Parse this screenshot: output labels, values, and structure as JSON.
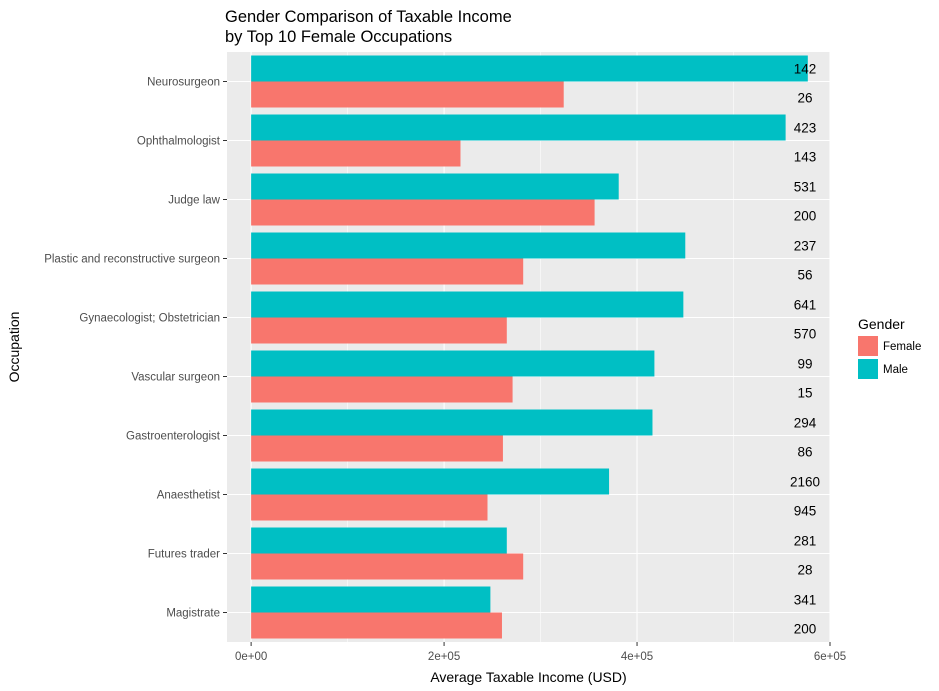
{
  "chart_data": {
    "type": "bar",
    "orientation": "horizontal",
    "title": "Gender Comparison of Taxable Income\n by Top 10 Female Occupations",
    "xlabel": "Average Taxable Income (USD)",
    "ylabel": "Occupation",
    "xlim": [
      -25000,
      600000
    ],
    "x_ticks": [
      0,
      200000,
      400000,
      600000
    ],
    "x_tick_labels": [
      "0e+00",
      "2e+05",
      "4e+05",
      "6e+05"
    ],
    "categories": [
      "Neurosurgeon",
      "Ophthalmologist",
      "Judge  law",
      "Plastic and reconstructive surgeon",
      "Gynaecologist; Obstetrician",
      "Vascular surgeon",
      "Gastroenterologist",
      "Anaesthetist",
      "Futures trader",
      "Magistrate"
    ],
    "series": [
      {
        "name": "Male",
        "color": "#00BFC4",
        "values": [
          577000,
          554000,
          381000,
          450000,
          448000,
          418000,
          416000,
          371000,
          265000,
          248000
        ],
        "counts": [
          "142",
          "423",
          "531",
          "237",
          "641",
          "99",
          "294",
          "2160",
          "281",
          "341"
        ]
      },
      {
        "name": "Female",
        "color": "#F8766D",
        "values": [
          324000,
          217000,
          356000,
          282000,
          265000,
          271000,
          261000,
          245000,
          282000,
          260000
        ],
        "counts": [
          "26",
          "143",
          "200",
          "56",
          "570",
          "15",
          "86",
          "945",
          "28",
          "200"
        ]
      }
    ],
    "legend": {
      "title": "Gender",
      "position": "right",
      "entries": [
        {
          "label": "Female",
          "color": "#F8766D"
        },
        {
          "label": "Male",
          "color": "#00BFC4"
        }
      ]
    },
    "grid": true,
    "panel_background": "#EBEBEB"
  }
}
